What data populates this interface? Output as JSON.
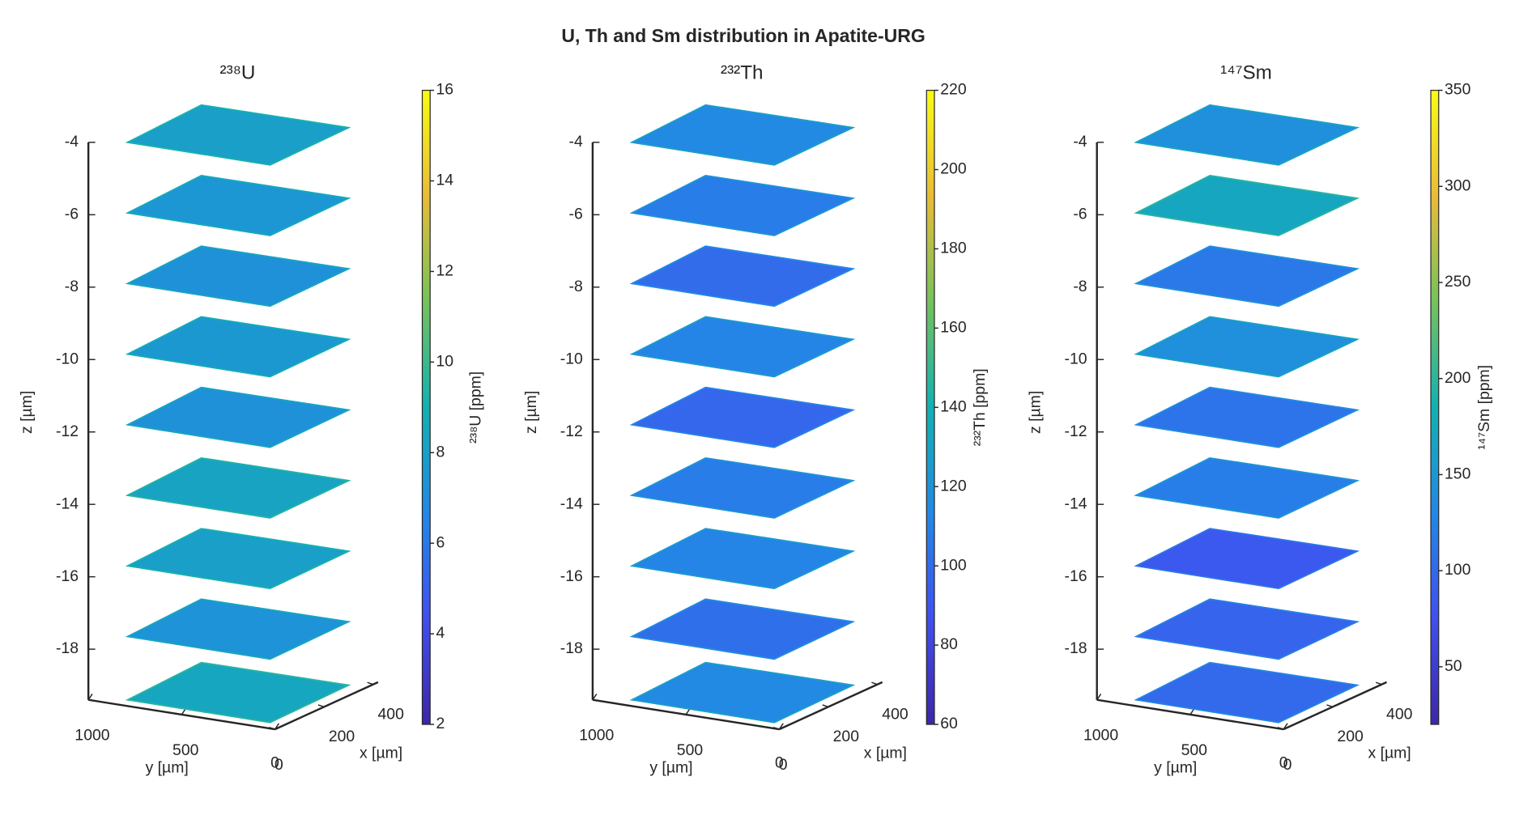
{
  "title": "U, Th and Sm distribution in Apatite-URG",
  "chart_data": [
    {
      "type": "slices",
      "title": "²³⁸U",
      "xlabel": "x [µm]",
      "ylabel": "y [µm]",
      "zlabel": "z [µm]",
      "xlim": [
        0,
        420
      ],
      "xticks": [
        0,
        200,
        400
      ],
      "ylim": [
        0,
        1000
      ],
      "yticks": [
        0,
        500,
        1000
      ],
      "zlim": [
        -19.4,
        -4
      ],
      "zticks": [
        -18,
        -16,
        -14,
        -12,
        -10,
        -8,
        -6,
        -4
      ],
      "slices": {
        "z": [
          -4,
          -5.95,
          -7.9,
          -9.85,
          -11.8,
          -13.75,
          -15.7,
          -17.65,
          -19.4
        ],
        "mean": [
          8,
          7.5,
          7.2,
          7.6,
          7.2,
          8.2,
          8,
          7.3,
          8.4
        ]
      },
      "colorbar": {
        "label": "²³⁸U [ppm]",
        "clim": [
          2,
          16
        ],
        "ticks": [
          2,
          4,
          6,
          8,
          10,
          12,
          14,
          16
        ]
      }
    },
    {
      "type": "slices",
      "title": "²³²Th",
      "xlabel": "x [µm]",
      "ylabel": "y [µm]",
      "zlabel": "z [µm]",
      "xlim": [
        0,
        420
      ],
      "xticks": [
        0,
        200,
        400
      ],
      "ylim": [
        0,
        1000
      ],
      "yticks": [
        0,
        500,
        1000
      ],
      "zlim": [
        -19.4,
        -4
      ],
      "zticks": [
        -18,
        -16,
        -14,
        -12,
        -10,
        -8,
        -6,
        -4
      ],
      "slices": {
        "z": [
          -4,
          -5.95,
          -7.9,
          -9.85,
          -11.8,
          -13.75,
          -15.7,
          -17.65,
          -19.4
        ],
        "mean": [
          115,
          108,
          100,
          112,
          98,
          108,
          112,
          102,
          115
        ]
      },
      "colorbar": {
        "label": "²³²Th [ppm]",
        "clim": [
          60,
          220
        ],
        "ticks": [
          60,
          80,
          100,
          120,
          140,
          160,
          180,
          200,
          220
        ]
      }
    },
    {
      "type": "slices",
      "title": "¹⁴⁷Sm",
      "xlabel": "x [µm]",
      "ylabel": "y [µm]",
      "zlabel": "z [µm]",
      "xlim": [
        0,
        420
      ],
      "xticks": [
        0,
        200,
        400
      ],
      "ylim": [
        0,
        1000
      ],
      "yticks": [
        0,
        500,
        1000
      ],
      "zlim": [
        -19.4,
        -4
      ],
      "zticks": [
        -18,
        -16,
        -14,
        -12,
        -10,
        -8,
        -6,
        -4
      ],
      "slices": {
        "z": [
          -4,
          -5.95,
          -7.9,
          -9.85,
          -11.8,
          -13.75,
          -15.7,
          -17.65,
          -19.4
        ],
        "mean": [
          140,
          170,
          115,
          140,
          110,
          120,
          85,
          95,
          100
        ]
      },
      "colorbar": {
        "label": "¹⁴⁷Sm [ppm]",
        "clim": [
          20,
          350
        ],
        "ticks": [
          50,
          100,
          150,
          200,
          250,
          300,
          350
        ]
      }
    }
  ]
}
